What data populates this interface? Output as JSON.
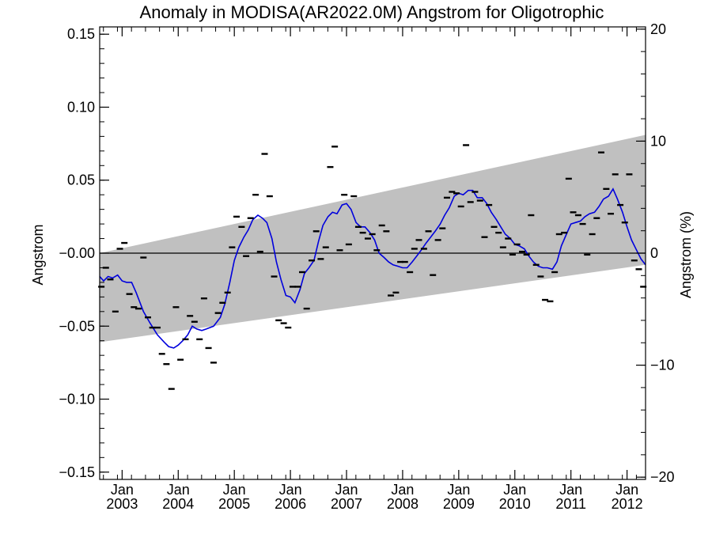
{
  "chart_data": {
    "type": "line",
    "title": "Anomaly in MODISA(AR2022.0M) Angstrom for Oligotrophic",
    "ylabel": "Angstrom",
    "y2label": "Angstrom (%)",
    "ylim": [
      -0.155,
      0.155
    ],
    "y2lim": [
      -20.2,
      20.2
    ],
    "xlim": [
      2002.6,
      2012.33
    ],
    "y_ticks": [
      "0.15",
      "0.10",
      "0.05",
      "-0.00",
      "-0.05",
      "-0.10",
      "-0.15"
    ],
    "y_tick_values": [
      0.15,
      0.1,
      0.05,
      0.0,
      -0.05,
      -0.1,
      -0.15
    ],
    "y2_ticks": [
      "20",
      "10",
      "0",
      "-10",
      "-20"
    ],
    "y2_tick_values": [
      20,
      10,
      0,
      -10,
      -20
    ],
    "x_tick_month": "Jan",
    "x_tick_years": [
      "2003",
      "2004",
      "2005",
      "2006",
      "2007",
      "2008",
      "2009",
      "2010",
      "2011",
      "2012"
    ],
    "zero_line": true,
    "colors": {
      "band": "#c0c0c0",
      "smoothed": "#0000dd",
      "points": "#000000",
      "axes": "#000000"
    },
    "trend_band": {
      "x": [
        2002.6,
        2012.33
      ],
      "upper": [
        0.0,
        0.081
      ],
      "lower": [
        -0.061,
        -0.008
      ]
    },
    "series": [
      {
        "kind": "monthly-markers",
        "points": [
          [
            2002.63,
            -0.023
          ],
          [
            2002.71,
            -0.01
          ],
          [
            2002.79,
            -0.018
          ],
          [
            2002.88,
            -0.04
          ],
          [
            2002.96,
            0.003
          ],
          [
            2003.04,
            0.007
          ],
          [
            2003.13,
            -0.028
          ],
          [
            2003.21,
            -0.037
          ],
          [
            2003.29,
            -0.038
          ],
          [
            2003.38,
            -0.003
          ],
          [
            2003.46,
            -0.044
          ],
          [
            2003.54,
            -0.051
          ],
          [
            2003.63,
            -0.051
          ],
          [
            2003.71,
            -0.069
          ],
          [
            2003.79,
            -0.076
          ],
          [
            2003.88,
            -0.093
          ],
          [
            2003.96,
            -0.037
          ],
          [
            2004.04,
            -0.073
          ],
          [
            2004.13,
            -0.059
          ],
          [
            2004.21,
            -0.043
          ],
          [
            2004.29,
            -0.047
          ],
          [
            2004.38,
            -0.059
          ],
          [
            2004.46,
            -0.031
          ],
          [
            2004.54,
            -0.065
          ],
          [
            2004.63,
            -0.075
          ],
          [
            2004.71,
            -0.041
          ],
          [
            2004.79,
            -0.034
          ],
          [
            2004.88,
            -0.027
          ],
          [
            2004.96,
            0.004
          ],
          [
            2005.04,
            0.025
          ],
          [
            2005.13,
            0.018
          ],
          [
            2005.21,
            -0.002
          ],
          [
            2005.29,
            0.024
          ],
          [
            2005.38,
            0.04
          ],
          [
            2005.46,
            0.001
          ],
          [
            2005.54,
            0.068
          ],
          [
            2005.63,
            0.039
          ],
          [
            2005.71,
            -0.016
          ],
          [
            2005.79,
            -0.046
          ],
          [
            2005.88,
            -0.048
          ],
          [
            2005.96,
            -0.051
          ],
          [
            2006.04,
            -0.023
          ],
          [
            2006.13,
            -0.023
          ],
          [
            2006.21,
            -0.013
          ],
          [
            2006.29,
            -0.038
          ],
          [
            2006.38,
            -0.005
          ],
          [
            2006.46,
            0.015
          ],
          [
            2006.54,
            -0.004
          ],
          [
            2006.63,
            0.004
          ],
          [
            2006.71,
            0.059
          ],
          [
            2006.79,
            0.073
          ],
          [
            2006.88,
            0.002
          ],
          [
            2006.96,
            0.04
          ],
          [
            2007.04,
            0.006
          ],
          [
            2007.13,
            0.039
          ],
          [
            2007.21,
            0.018
          ],
          [
            2007.29,
            0.014
          ],
          [
            2007.38,
            0.01
          ],
          [
            2007.46,
            0.013
          ],
          [
            2007.54,
            0.002
          ],
          [
            2007.63,
            0.019
          ],
          [
            2007.71,
            0.015
          ],
          [
            2007.79,
            -0.029
          ],
          [
            2007.88,
            -0.027
          ],
          [
            2007.96,
            -0.006
          ],
          [
            2008.04,
            -0.006
          ],
          [
            2008.13,
            -0.013
          ],
          [
            2008.21,
            0.003
          ],
          [
            2008.29,
            0.009
          ],
          [
            2008.38,
            0.003
          ],
          [
            2008.46,
            0.015
          ],
          [
            2008.54,
            -0.015
          ],
          [
            2008.63,
            0.009
          ],
          [
            2008.71,
            0.017
          ],
          [
            2008.79,
            0.038
          ],
          [
            2008.88,
            0.042
          ],
          [
            2008.96,
            0.041
          ],
          [
            2009.04,
            0.032
          ],
          [
            2009.13,
            0.074
          ],
          [
            2009.21,
            0.035
          ],
          [
            2009.29,
            0.042
          ],
          [
            2009.38,
            0.036
          ],
          [
            2009.46,
            0.011
          ],
          [
            2009.54,
            0.033
          ],
          [
            2009.63,
            0.018
          ],
          [
            2009.71,
            0.014
          ],
          [
            2009.79,
            0.004
          ],
          [
            2009.88,
            0.01
          ],
          [
            2009.96,
            -0.001
          ],
          [
            2010.04,
            0.006
          ],
          [
            2010.13,
            0.001
          ],
          [
            2010.21,
            -0.001
          ],
          [
            2010.29,
            0.026
          ],
          [
            2010.38,
            -0.008
          ],
          [
            2010.46,
            -0.016
          ],
          [
            2010.54,
            -0.032
          ],
          [
            2010.63,
            -0.033
          ],
          [
            2010.71,
            -0.013
          ],
          [
            2010.79,
            0.013
          ],
          [
            2010.88,
            0.014
          ],
          [
            2010.96,
            0.051
          ],
          [
            2011.04,
            0.028
          ],
          [
            2011.13,
            0.026
          ],
          [
            2011.21,
            0.02
          ],
          [
            2011.29,
            -0.001
          ],
          [
            2011.38,
            0.013
          ],
          [
            2011.46,
            0.024
          ],
          [
            2011.54,
            0.069
          ],
          [
            2011.63,
            0.044
          ],
          [
            2011.71,
            0.027
          ],
          [
            2011.79,
            0.054
          ],
          [
            2011.88,
            0.033
          ],
          [
            2011.96,
            0.021
          ],
          [
            2012.04,
            0.054
          ],
          [
            2012.13,
            -0.005
          ],
          [
            2012.21,
            -0.011
          ],
          [
            2012.29,
            -0.023
          ]
        ]
      },
      {
        "kind": "smoothed-line",
        "points": [
          [
            2002.6,
            -0.016
          ],
          [
            2002.67,
            -0.019
          ],
          [
            2002.75,
            -0.016
          ],
          [
            2002.83,
            -0.017
          ],
          [
            2002.92,
            -0.015
          ],
          [
            2003.0,
            -0.019
          ],
          [
            2003.08,
            -0.02
          ],
          [
            2003.17,
            -0.02
          ],
          [
            2003.25,
            -0.027
          ],
          [
            2003.38,
            -0.04
          ],
          [
            2003.5,
            -0.048
          ],
          [
            2003.63,
            -0.056
          ],
          [
            2003.75,
            -0.061
          ],
          [
            2003.83,
            -0.064
          ],
          [
            2003.92,
            -0.065
          ],
          [
            2004.0,
            -0.063
          ],
          [
            2004.08,
            -0.06
          ],
          [
            2004.17,
            -0.056
          ],
          [
            2004.25,
            -0.05
          ],
          [
            2004.33,
            -0.052
          ],
          [
            2004.42,
            -0.053
          ],
          [
            2004.5,
            -0.052
          ],
          [
            2004.63,
            -0.05
          ],
          [
            2004.75,
            -0.044
          ],
          [
            2004.83,
            -0.035
          ],
          [
            2004.92,
            -0.02
          ],
          [
            2005.0,
            -0.005
          ],
          [
            2005.08,
            0.004
          ],
          [
            2005.17,
            0.011
          ],
          [
            2005.25,
            0.016
          ],
          [
            2005.33,
            0.023
          ],
          [
            2005.42,
            0.026
          ],
          [
            2005.5,
            0.024
          ],
          [
            2005.58,
            0.021
          ],
          [
            2005.67,
            0.01
          ],
          [
            2005.75,
            -0.006
          ],
          [
            2005.83,
            -0.018
          ],
          [
            2005.92,
            -0.029
          ],
          [
            2006.0,
            -0.03
          ],
          [
            2006.08,
            -0.034
          ],
          [
            2006.17,
            -0.025
          ],
          [
            2006.25,
            -0.014
          ],
          [
            2006.33,
            -0.01
          ],
          [
            2006.42,
            -0.005
          ],
          [
            2006.5,
            0.008
          ],
          [
            2006.58,
            0.019
          ],
          [
            2006.67,
            0.025
          ],
          [
            2006.75,
            0.028
          ],
          [
            2006.83,
            0.027
          ],
          [
            2006.92,
            0.033
          ],
          [
            2007.0,
            0.034
          ],
          [
            2007.08,
            0.03
          ],
          [
            2007.17,
            0.021
          ],
          [
            2007.25,
            0.018
          ],
          [
            2007.33,
            0.018
          ],
          [
            2007.42,
            0.014
          ],
          [
            2007.5,
            0.009
          ],
          [
            2007.58,
            0.0
          ],
          [
            2007.67,
            -0.003
          ],
          [
            2007.75,
            -0.006
          ],
          [
            2007.83,
            -0.008
          ],
          [
            2007.92,
            -0.009
          ],
          [
            2008.0,
            -0.01
          ],
          [
            2008.08,
            -0.01
          ],
          [
            2008.17,
            -0.006
          ],
          [
            2008.25,
            -0.002
          ],
          [
            2008.33,
            0.002
          ],
          [
            2008.42,
            0.007
          ],
          [
            2008.5,
            0.011
          ],
          [
            2008.58,
            0.015
          ],
          [
            2008.67,
            0.02
          ],
          [
            2008.75,
            0.026
          ],
          [
            2008.83,
            0.031
          ],
          [
            2008.92,
            0.039
          ],
          [
            2009.0,
            0.041
          ],
          [
            2009.08,
            0.04
          ],
          [
            2009.17,
            0.043
          ],
          [
            2009.25,
            0.043
          ],
          [
            2009.33,
            0.038
          ],
          [
            2009.42,
            0.038
          ],
          [
            2009.5,
            0.034
          ],
          [
            2009.58,
            0.028
          ],
          [
            2009.67,
            0.023
          ],
          [
            2009.75,
            0.018
          ],
          [
            2009.83,
            0.013
          ],
          [
            2009.92,
            0.01
          ],
          [
            2010.0,
            0.006
          ],
          [
            2010.08,
            0.005
          ],
          [
            2010.17,
            0.003
          ],
          [
            2010.25,
            -0.002
          ],
          [
            2010.33,
            -0.006
          ],
          [
            2010.42,
            -0.009
          ],
          [
            2010.5,
            -0.01
          ],
          [
            2010.58,
            -0.01
          ],
          [
            2010.67,
            -0.011
          ],
          [
            2010.75,
            -0.006
          ],
          [
            2010.83,
            0.005
          ],
          [
            2010.92,
            0.013
          ],
          [
            2011.0,
            0.02
          ],
          [
            2011.08,
            0.021
          ],
          [
            2011.17,
            0.022
          ],
          [
            2011.25,
            0.025
          ],
          [
            2011.33,
            0.027
          ],
          [
            2011.42,
            0.028
          ],
          [
            2011.5,
            0.032
          ],
          [
            2011.58,
            0.037
          ],
          [
            2011.67,
            0.039
          ],
          [
            2011.75,
            0.044
          ],
          [
            2011.83,
            0.037
          ],
          [
            2011.92,
            0.028
          ],
          [
            2012.0,
            0.018
          ],
          [
            2012.08,
            0.009
          ],
          [
            2012.17,
            0.002
          ],
          [
            2012.25,
            -0.004
          ],
          [
            2012.33,
            -0.008
          ]
        ]
      }
    ]
  }
}
